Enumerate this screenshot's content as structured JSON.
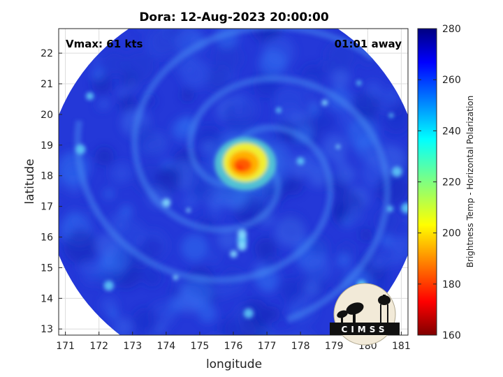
{
  "chart_data": {
    "type": "heatmap",
    "title": "Dora: 12-Aug-2023 20:00:00",
    "xlabel": "longitude",
    "ylabel": "latitude",
    "xlim": [
      170.8,
      181.2
    ],
    "ylim": [
      12.8,
      22.8
    ],
    "xticks": [
      171,
      172,
      173,
      174,
      175,
      176,
      177,
      178,
      179,
      180,
      181
    ],
    "yticks": [
      13,
      14,
      15,
      16,
      17,
      18,
      19,
      20,
      21,
      22
    ],
    "grid": true,
    "annotations": {
      "vmax": "Vmax: 61 kts",
      "time_away": "01:01 away"
    },
    "colorbar": {
      "label": "Brightness Temp - Horizontal Polarization",
      "min": 160,
      "max": 280,
      "ticks": [
        160,
        180,
        200,
        220,
        240,
        260,
        280
      ],
      "colormap": "jet",
      "placement": "right"
    },
    "swath": {
      "center_lon": 176.0,
      "center_lat": 17.7,
      "radius_deg": 5.6
    },
    "storm_core": {
      "lon": 176.4,
      "lat": 18.3,
      "min_tb": 185
    }
  },
  "logo": {
    "text": "CIMSS"
  },
  "colors": {
    "background_tb": "#2030d0",
    "core_tb": "#ff4000"
  }
}
